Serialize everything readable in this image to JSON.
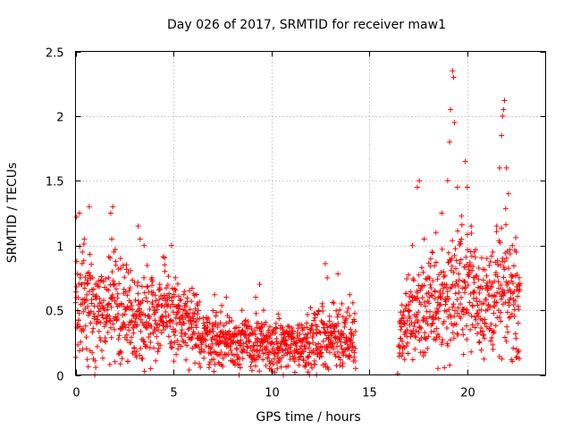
{
  "chart_data": {
    "type": "scatter",
    "title": "Day 026 of 2017, SRMTID for receiver maw1",
    "xlabel": "GPS time / hours",
    "ylabel": "SRMTID / TECUs",
    "xlim": [
      0,
      24
    ],
    "ylim": [
      0,
      2.5
    ],
    "x_ticks": [
      0,
      5,
      10,
      15,
      20
    ],
    "x_tick_labels": [
      "0",
      "5",
      "10",
      "15",
      "20"
    ],
    "y_ticks": [
      0,
      0.5,
      1,
      1.5,
      2,
      2.5
    ],
    "y_tick_labels": [
      "0",
      "0.5",
      "1",
      "1.5",
      "2",
      "2.5"
    ],
    "grid": true,
    "marker": "plus",
    "series": [
      {
        "name": "SRMTID",
        "color": "#ff0000",
        "envelope": [
          {
            "x": 0.0,
            "mean": 0.55,
            "spread": 0.3
          },
          {
            "x": 1.0,
            "mean": 0.48,
            "spread": 0.28
          },
          {
            "x": 2.0,
            "mean": 0.5,
            "spread": 0.3
          },
          {
            "x": 3.0,
            "mean": 0.45,
            "spread": 0.25
          },
          {
            "x": 4.0,
            "mean": 0.48,
            "spread": 0.28
          },
          {
            "x": 5.0,
            "mean": 0.45,
            "spread": 0.25
          },
          {
            "x": 6.0,
            "mean": 0.35,
            "spread": 0.2
          },
          {
            "x": 7.0,
            "mean": 0.28,
            "spread": 0.16
          },
          {
            "x": 8.0,
            "mean": 0.27,
            "spread": 0.16
          },
          {
            "x": 9.0,
            "mean": 0.24,
            "spread": 0.15
          },
          {
            "x": 10.0,
            "mean": 0.22,
            "spread": 0.14
          },
          {
            "x": 11.0,
            "mean": 0.24,
            "spread": 0.14
          },
          {
            "x": 12.0,
            "mean": 0.26,
            "spread": 0.16
          },
          {
            "x": 13.0,
            "mean": 0.3,
            "spread": 0.18
          },
          {
            "x": 14.3,
            "mean": 0.3,
            "spread": 0.18
          },
          {
            "x": 16.5,
            "mean": 0.25,
            "spread": 0.14
          },
          {
            "x": 17.0,
            "mean": 0.45,
            "spread": 0.25
          },
          {
            "x": 18.0,
            "mean": 0.5,
            "spread": 0.28
          },
          {
            "x": 19.0,
            "mean": 0.6,
            "spread": 0.35
          },
          {
            "x": 20.0,
            "mean": 0.7,
            "spread": 0.35
          },
          {
            "x": 21.0,
            "mean": 0.55,
            "spread": 0.28
          },
          {
            "x": 22.0,
            "mean": 0.65,
            "spread": 0.35
          },
          {
            "x": 22.7,
            "mean": 0.55,
            "spread": 0.28
          }
        ],
        "points": [
          [
            0.05,
            1.22
          ],
          [
            0.2,
            1.25
          ],
          [
            0.35,
            0.95
          ],
          [
            0.45,
            1.05
          ],
          [
            0.7,
            1.3
          ],
          [
            0.6,
            0.12
          ],
          [
            1.1,
            0.7
          ],
          [
            1.8,
            1.25
          ],
          [
            1.9,
            1.3
          ],
          [
            1.85,
            1.05
          ],
          [
            2.3,
            0.9
          ],
          [
            2.6,
            0.85
          ],
          [
            3.0,
            0.18
          ],
          [
            3.2,
            1.15
          ],
          [
            3.3,
            1.05
          ],
          [
            3.5,
            1.0
          ],
          [
            3.9,
            0.75
          ],
          [
            4.3,
            0.7
          ],
          [
            4.55,
            0.85
          ],
          [
            4.9,
            1.0
          ],
          [
            5.1,
            0.75
          ],
          [
            5.6,
            0.25
          ],
          [
            6.2,
            0.55
          ],
          [
            6.9,
            0.2
          ],
          [
            7.1,
            0.62
          ],
          [
            7.4,
            0.25
          ],
          [
            7.7,
            0.6
          ],
          [
            8.1,
            0.15
          ],
          [
            8.5,
            0.5
          ],
          [
            9.0,
            0.1
          ],
          [
            9.2,
            0.6
          ],
          [
            9.4,
            0.7
          ],
          [
            9.6,
            0.5
          ],
          [
            9.9,
            0.05
          ],
          [
            10.3,
            0.05
          ],
          [
            10.6,
            0.35
          ],
          [
            11.2,
            0.02
          ],
          [
            11.8,
            0.4
          ],
          [
            12.3,
            0.0
          ],
          [
            12.6,
            0.55
          ],
          [
            12.75,
            0.86
          ],
          [
            12.85,
            0.75
          ],
          [
            13.0,
            0.25
          ],
          [
            13.4,
            0.78
          ],
          [
            13.6,
            0.55
          ],
          [
            14.0,
            0.62
          ],
          [
            14.3,
            0.05
          ],
          [
            16.45,
            0.01
          ],
          [
            16.6,
            0.35
          ],
          [
            16.8,
            0.12
          ],
          [
            17.2,
            1.0
          ],
          [
            17.45,
            1.45
          ],
          [
            17.55,
            1.5
          ],
          [
            17.8,
            1.05
          ],
          [
            18.2,
            0.95
          ],
          [
            18.5,
            0.05
          ],
          [
            18.4,
            1.1
          ],
          [
            18.7,
            1.25
          ],
          [
            19.0,
            1.5
          ],
          [
            19.1,
            1.8
          ],
          [
            19.15,
            2.05
          ],
          [
            19.25,
            2.35
          ],
          [
            19.3,
            2.3
          ],
          [
            19.35,
            1.95
          ],
          [
            19.5,
            1.45
          ],
          [
            19.7,
            1.05
          ],
          [
            19.9,
            1.65
          ],
          [
            20.0,
            1.45
          ],
          [
            20.2,
            1.15
          ],
          [
            20.35,
            0.95
          ],
          [
            20.6,
            0.25
          ],
          [
            21.0,
            0.9
          ],
          [
            21.3,
            0.95
          ],
          [
            21.5,
            1.15
          ],
          [
            21.65,
            1.6
          ],
          [
            21.75,
            1.85
          ],
          [
            21.8,
            2.0
          ],
          [
            21.85,
            2.05
          ],
          [
            21.9,
            2.12
          ],
          [
            22.0,
            1.6
          ],
          [
            22.1,
            1.4
          ],
          [
            22.3,
            1.0
          ],
          [
            22.5,
            0.95
          ],
          [
            22.6,
            0.4
          ],
          [
            22.65,
            0.75
          ]
        ]
      }
    ]
  }
}
